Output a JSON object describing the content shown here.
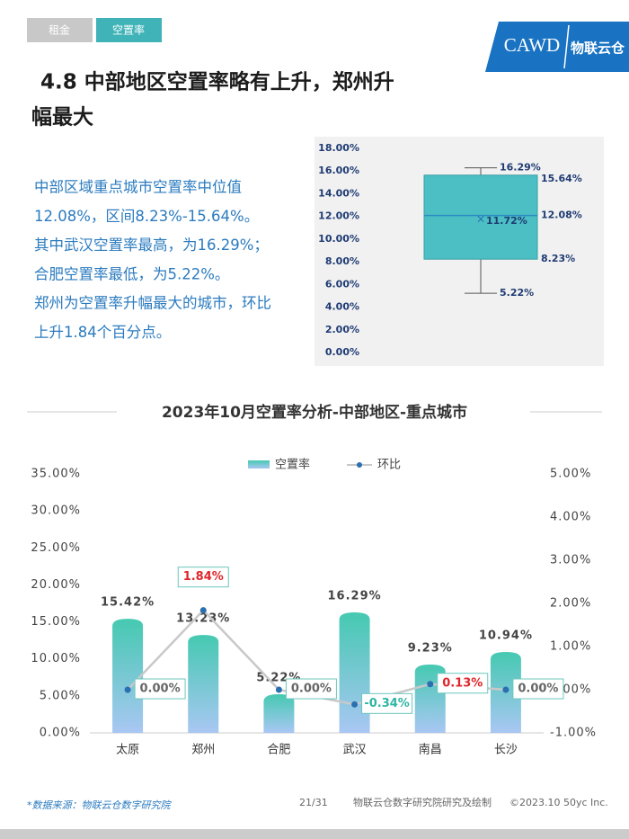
{
  "tabs": [
    "租金",
    "空置率"
  ],
  "logo": {
    "name": "CAWD",
    "brand": "物联云仓"
  },
  "heading": [
    "4.8 中部地区空置率略有上升，郑州升",
    "幅最大"
  ],
  "body": [
    "中部区域重点城市空置率中位值",
    "12.08%，区间8.23%-15.64%。",
    "其中武汉空置率最高，为16.29%；",
    "合肥空置率最低，为5.22%。",
    "郑州为空置率升幅最大的城市，环比",
    "上升1.84个百分点。"
  ],
  "chart_data": [
    {
      "type": "box",
      "color": "#4bbfc4",
      "box": {
        "min": 5.22,
        "q1": 8.23,
        "median": 12.08,
        "mean": 11.72,
        "q3": 15.64,
        "max": 16.29
      },
      "value_labels": {
        "min": "5.22%",
        "q1": "8.23%",
        "median": "12.08%",
        "mean": "11.72%",
        "q3": "15.64%",
        "max": "16.29%"
      },
      "ylim": [
        0,
        18
      ],
      "yticks": [
        {
          "value": 0,
          "label": "0.00%"
        },
        {
          "value": 2,
          "label": "2.00%"
        },
        {
          "value": 4,
          "label": "4.00%"
        },
        {
          "value": 6,
          "label": "6.00%"
        },
        {
          "value": 8,
          "label": "8.00%"
        },
        {
          "value": 10,
          "label": "10.00%"
        },
        {
          "value": 12,
          "label": "12.00%"
        },
        {
          "value": 14,
          "label": "14.00%"
        },
        {
          "value": 16,
          "label": "16.00%"
        },
        {
          "value": 18,
          "label": "18.00%"
        }
      ]
    },
    {
      "type": "combo",
      "title": "2023年10月空置率分析-中部地区-重点城市",
      "categories": [
        "太原",
        "郑州",
        "合肥",
        "武汉",
        "南昌",
        "长沙"
      ],
      "series": [
        {
          "name": "空置率",
          "type": "bar",
          "color": "#45c9b1",
          "values": [
            15.42,
            13.23,
            5.22,
            16.29,
            9.23,
            10.94
          ],
          "value_labels": [
            "15.42%",
            "13.23%",
            "5.22%",
            "16.29%",
            "9.23%",
            "10.94%"
          ]
        },
        {
          "name": "环比",
          "type": "line",
          "axis": "y2",
          "color": "#c8c8c8",
          "values": [
            0,
            1.84,
            0,
            -0.34,
            0.13,
            0
          ],
          "value_labels": [
            "0.00%",
            "1.84%",
            "0.00%",
            "-0.34%",
            "0.13%",
            "0.00%"
          ]
        }
      ],
      "ylim": [
        0,
        35
      ],
      "yticks": [
        {
          "value": 0,
          "label": "0.00%"
        },
        {
          "value": 5,
          "label": "5.00%"
        },
        {
          "value": 10,
          "label": "10.00%"
        },
        {
          "value": 15,
          "label": "15.00%"
        },
        {
          "value": 20,
          "label": "20.00%"
        },
        {
          "value": 25,
          "label": "25.00%"
        },
        {
          "value": 30,
          "label": "30.00%"
        },
        {
          "value": 35,
          "label": "35.00%"
        }
      ],
      "y2lim": [
        -1,
        5
      ],
      "y2ticks": [
        {
          "value": -1,
          "label": "-1.00%"
        },
        {
          "value": 0,
          "label": "0.00%"
        },
        {
          "value": 1,
          "label": "1.00%"
        },
        {
          "value": 2,
          "label": "2.00%"
        },
        {
          "value": 3,
          "label": "3.00%"
        },
        {
          "value": 4,
          "label": "4.00%"
        },
        {
          "value": 5,
          "label": "5.00%"
        }
      ]
    }
  ],
  "footer": {
    "source": "*数据来源：物联云仓数字研究院",
    "page": "21/31",
    "credit": "物联云仓数字研究院研究及绘制",
    "copyright": "©2023.10 50yc Inc."
  }
}
